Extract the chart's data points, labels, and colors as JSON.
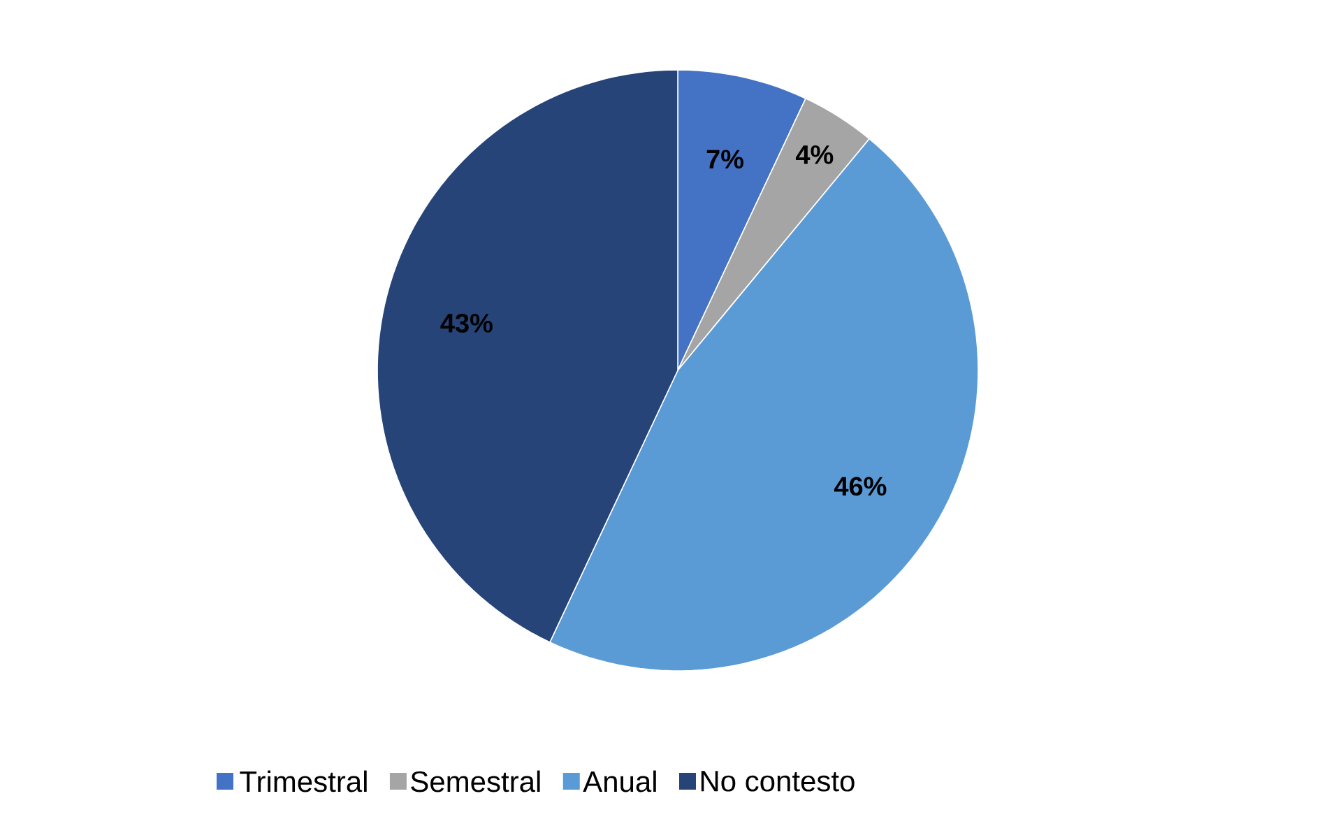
{
  "chart_data": {
    "type": "pie",
    "categories": [
      "Trimestral",
      "Semestral",
      "Anual",
      "No contesto"
    ],
    "values": [
      7,
      4,
      46,
      43
    ],
    "colors": [
      "#4472c4",
      "#a5a5a5",
      "#5b9bd5",
      "#264478"
    ],
    "value_labels": [
      "7%",
      "4%",
      "46%",
      "43%"
    ],
    "legend": "bottom"
  }
}
